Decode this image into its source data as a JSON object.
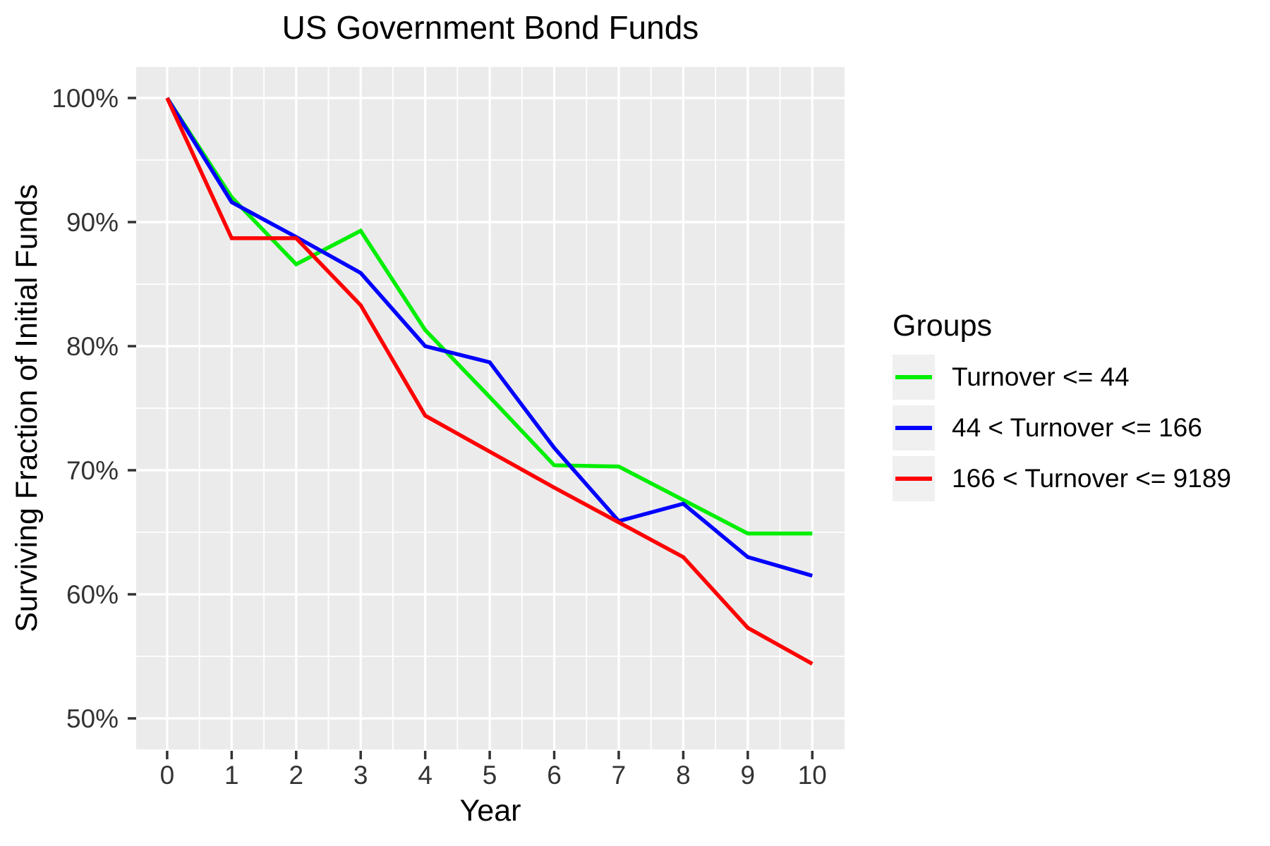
{
  "title": "US Government Bond Funds",
  "legend": {
    "title": "Groups",
    "items": [
      {
        "label": "Turnover <= 44",
        "color": "#00EE00"
      },
      {
        "label": "44 < Turnover <= 166",
        "color": "#0000FF"
      },
      {
        "label": "166 < Turnover <= 9189",
        "color": "#FF0000"
      }
    ]
  },
  "colors": {
    "panel_background": "#EBEBEB",
    "gridline": "#FFFFFF",
    "tick_mark": "#333333",
    "tick_label": "#333333",
    "legend_key_background": "#F0F0F0"
  },
  "chart_data": {
    "type": "line",
    "title": "US Government Bond Funds",
    "xlabel": "Year",
    "ylabel": "Surviving Fraction of Initial Funds",
    "x": [
      0,
      1,
      2,
      3,
      4,
      5,
      6,
      7,
      8,
      9,
      10
    ],
    "x_tick_labels": [
      "0",
      "1",
      "2",
      "3",
      "4",
      "5",
      "6",
      "7",
      "8",
      "9",
      "10"
    ],
    "x_minor_ticks": [
      0.5,
      1.5,
      2.5,
      3.5,
      4.5,
      5.5,
      6.5,
      7.5,
      8.5,
      9.5
    ],
    "y_ticks": [
      50,
      60,
      70,
      80,
      90,
      100
    ],
    "y_tick_labels": [
      "50%",
      "60%",
      "70%",
      "80%",
      "90%",
      "100%"
    ],
    "y_minor_ticks": [
      55,
      65,
      75,
      85,
      95
    ],
    "xlim": [
      -0.48,
      10.5
    ],
    "ylim": [
      47.5,
      102.5
    ],
    "grid": true,
    "legend_position": "right",
    "legend_title": "Groups",
    "series": [
      {
        "name": "Turnover <= 44",
        "color": "#00EE00",
        "values": [
          100,
          92.0,
          86.6,
          89.3,
          81.3,
          75.9,
          70.4,
          70.3,
          67.6,
          64.9,
          64.9
        ]
      },
      {
        "name": "44 < Turnover <= 166",
        "color": "#0000FF",
        "values": [
          100,
          91.6,
          88.8,
          85.9,
          80.0,
          78.7,
          71.8,
          65.9,
          67.3,
          63.0,
          61.5
        ]
      },
      {
        "name": "166 < Turnover <= 9189",
        "color": "#FF0000",
        "values": [
          100,
          88.7,
          88.7,
          83.3,
          74.4,
          71.5,
          68.6,
          65.8,
          63.0,
          57.3,
          54.4
        ]
      }
    ]
  }
}
